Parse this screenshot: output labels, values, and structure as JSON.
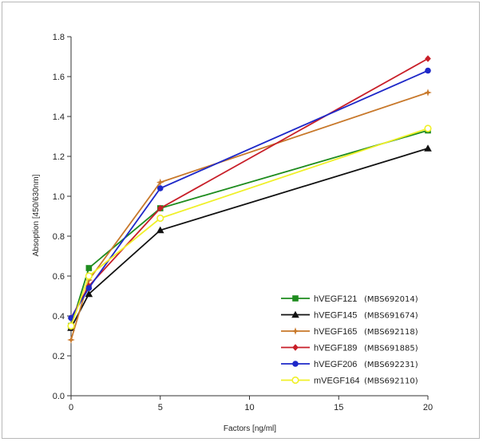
{
  "chart_data": {
    "type": "line",
    "xlabel": "Factors [ng/ml]",
    "ylabel": "Absoption [450/630nm]",
    "xlim": [
      0,
      20
    ],
    "ylim": [
      0,
      1.8
    ],
    "x_ticks": [
      "0",
      "5",
      "10",
      "15",
      "20"
    ],
    "y_ticks": [
      "0.0",
      "0.2",
      "0.4",
      "0.6",
      "0.8",
      "1.0",
      "1.2",
      "1.4",
      "1.6",
      "1.8"
    ],
    "x": [
      0,
      1,
      5,
      20
    ],
    "grid": false,
    "legend_position": "bottom-right",
    "series": [
      {
        "name": "hVEGF121",
        "code": "(MBS692014)",
        "color": "#1e8c1e",
        "marker": "square",
        "values": [
          0.35,
          0.64,
          0.94,
          1.33
        ]
      },
      {
        "name": "hVEGF145",
        "code": "(MBS691674)",
        "color": "#111111",
        "marker": "triangle",
        "values": [
          0.34,
          0.51,
          0.83,
          1.24
        ]
      },
      {
        "name": "hVEGF165",
        "code": "(MBS692118)",
        "color": "#c8782a",
        "marker": "star",
        "values": [
          0.28,
          0.58,
          1.07,
          1.52
        ]
      },
      {
        "name": "hVEGF189",
        "code": "(MBS691885)",
        "color": "#c81e28",
        "marker": "diamond",
        "values": [
          0.39,
          0.55,
          0.94,
          1.69
        ]
      },
      {
        "name": "hVEGF206",
        "code": "(MBS692231)",
        "color": "#1e28c8",
        "marker": "circle",
        "values": [
          0.39,
          0.54,
          1.04,
          1.63
        ]
      },
      {
        "name": "mVEGF164",
        "code": "(MBS692110)",
        "color": "#f0f028",
        "marker": "open-circle",
        "values": [
          0.35,
          0.6,
          0.89,
          1.34
        ]
      }
    ]
  }
}
